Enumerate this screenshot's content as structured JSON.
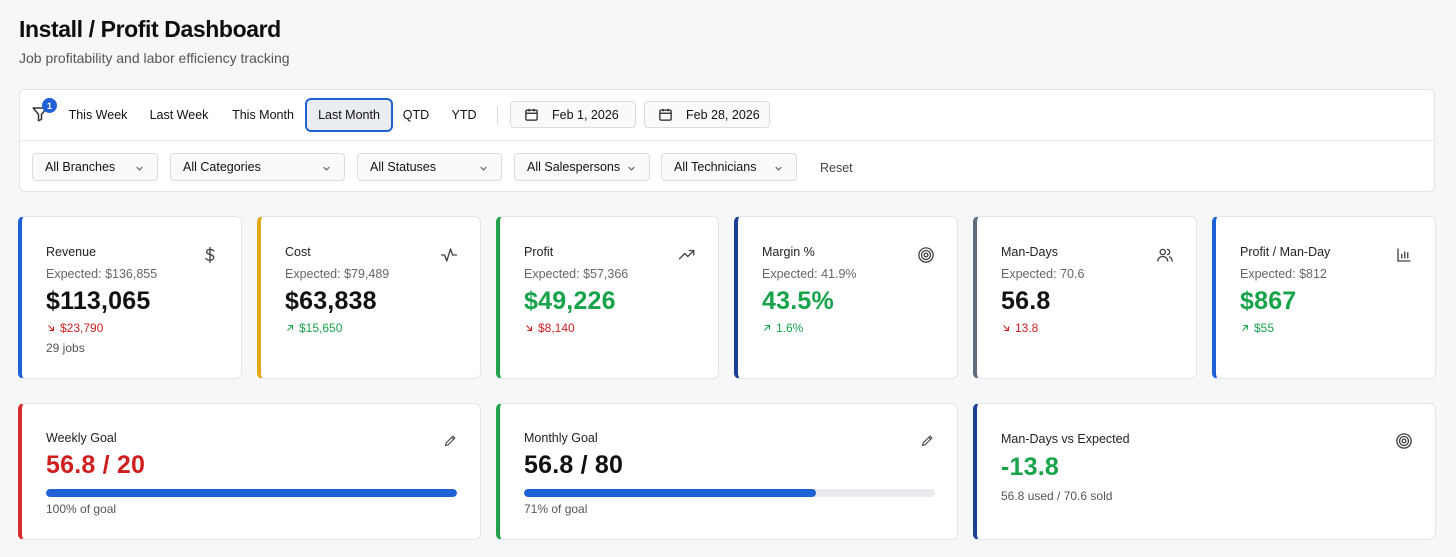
{
  "header": {
    "title": "Install / Profit Dashboard",
    "subtitle": "Job profitability and labor efficiency tracking"
  },
  "filters": {
    "badge_count": "1",
    "presets": [
      "This Week",
      "Last Week",
      "This Month",
      "Last Month",
      "QTD",
      "YTD"
    ],
    "active_preset": "Last Month",
    "start_date": "Feb 1, 2026",
    "end_date": "Feb 28, 2026",
    "dropdowns": {
      "branches": "All Branches",
      "categories": "All Categories",
      "statuses": "All Statuses",
      "salespersons": "All Salespersons",
      "technicians": "All Technicians"
    },
    "reset_label": "Reset"
  },
  "colors": {
    "accent": "#1f62d6",
    "positive": "#17a34a",
    "negative": "#d01f1f",
    "revenue_border": "#1f62d6",
    "cost_border": "#e6a817",
    "profit_border": "#22a34a",
    "margin_border": "#1b3f94",
    "mandays_border": "#5e6b7c",
    "profit_per_manday_border": "#1f62d6",
    "weekly_border": "#d92c2c",
    "monthly_border": "#22a34a",
    "vs_expected_border": "#1b3f94"
  },
  "cards": {
    "revenue": {
      "label": "Revenue",
      "expected": "Expected: $136,855",
      "value": "$113,065",
      "delta": "$23,790",
      "delta_dir": "down",
      "sub": "29 jobs",
      "icon": "dollar-icon"
    },
    "cost": {
      "label": "Cost",
      "expected": "Expected: $79,489",
      "value": "$63,838",
      "delta": "$15,650",
      "delta_dir": "up",
      "icon": "activity-icon"
    },
    "profit": {
      "label": "Profit",
      "expected": "Expected: $57,366",
      "value": "$49,226",
      "delta": "$8,140",
      "delta_dir": "down",
      "icon": "trending-up-icon"
    },
    "margin": {
      "label": "Margin %",
      "expected": "Expected: 41.9%",
      "value": "43.5%",
      "delta": "1.6%",
      "delta_dir": "up",
      "icon": "target-icon"
    },
    "mandays": {
      "label": "Man-Days",
      "expected": "Expected: 70.6",
      "value": "56.8",
      "delta": "13.8",
      "delta_dir": "down",
      "icon": "users-icon"
    },
    "profit_per_manday": {
      "label": "Profit / Man-Day",
      "expected": "Expected: $812",
      "value": "$867",
      "delta": "$55",
      "delta_dir": "up",
      "icon": "bar-chart-icon"
    }
  },
  "goals": {
    "weekly": {
      "label": "Weekly Goal",
      "value": "56.8 / 20",
      "progress": 1.0,
      "sub": "100% of goal"
    },
    "monthly": {
      "label": "Monthly Goal",
      "value": "56.8 / 80",
      "progress": 0.71,
      "sub": "71% of goal"
    },
    "vs_expected": {
      "label": "Man-Days vs Expected",
      "value": "-13.8",
      "sub": "56.8 used / 70.6 sold"
    }
  }
}
